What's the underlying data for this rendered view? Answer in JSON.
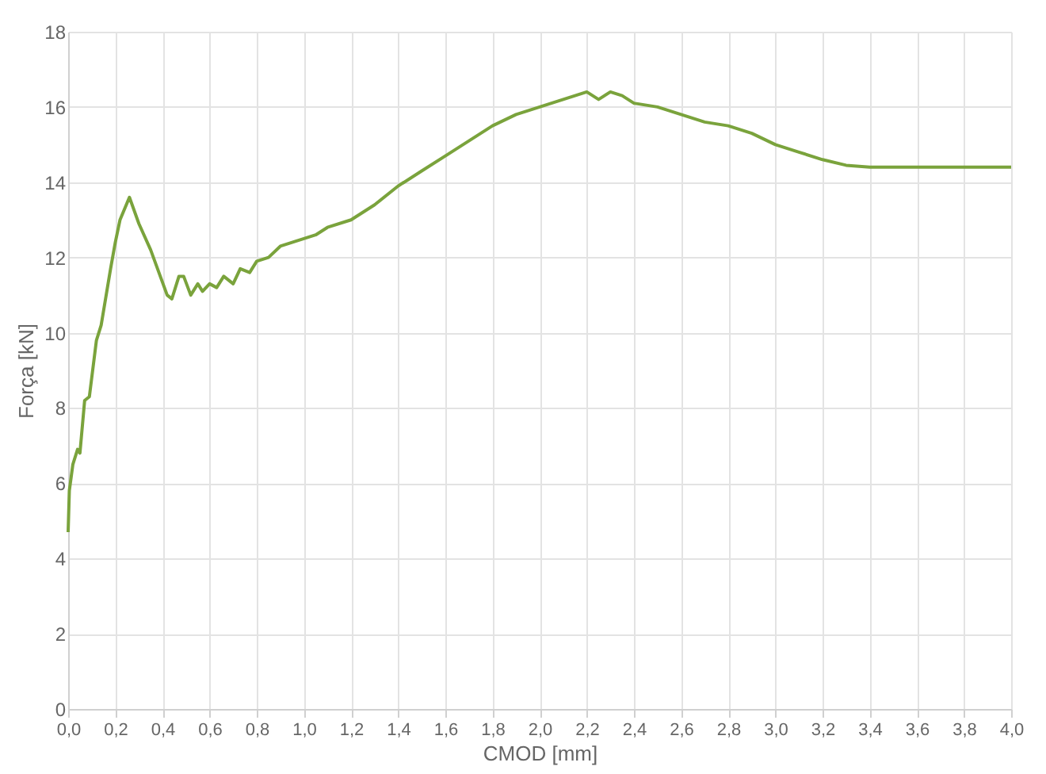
{
  "chart_data": {
    "type": "line",
    "xlabel": "CMOD [mm]",
    "ylabel": "Força [kN]",
    "x": [
      0,
      0.005,
      0.02,
      0.04,
      0.05,
      0.07,
      0.09,
      0.12,
      0.14,
      0.18,
      0.2,
      0.22,
      0.26,
      0.3,
      0.35,
      0.42,
      0.44,
      0.47,
      0.49,
      0.52,
      0.55,
      0.57,
      0.6,
      0.63,
      0.66,
      0.7,
      0.73,
      0.77,
      0.8,
      0.85,
      0.9,
      0.95,
      1.0,
      1.05,
      1.1,
      1.2,
      1.3,
      1.4,
      1.5,
      1.6,
      1.7,
      1.8,
      1.9,
      2.0,
      2.1,
      2.15,
      2.2,
      2.25,
      2.3,
      2.35,
      2.4,
      2.5,
      2.6,
      2.7,
      2.8,
      2.9,
      3.0,
      3.1,
      3.2,
      3.3,
      3.4,
      3.6,
      3.8,
      4.0
    ],
    "series": [
      {
        "color": "#7aa33c",
        "values": [
          4.7,
          5.8,
          6.5,
          6.9,
          6.8,
          8.2,
          8.3,
          9.8,
          10.2,
          11.7,
          12.4,
          13.0,
          13.6,
          12.9,
          12.2,
          11.0,
          10.9,
          11.5,
          11.5,
          11.0,
          11.3,
          11.1,
          11.3,
          11.2,
          11.5,
          11.3,
          11.7,
          11.6,
          11.9,
          12.0,
          12.3,
          12.4,
          12.5,
          12.6,
          12.8,
          13.0,
          13.4,
          13.9,
          14.3,
          14.7,
          15.1,
          15.5,
          15.8,
          16.0,
          16.2,
          16.3,
          16.4,
          16.2,
          16.4,
          16.3,
          16.1,
          16.0,
          15.8,
          15.6,
          15.5,
          15.3,
          15.0,
          14.8,
          14.6,
          14.45,
          14.4,
          14.4,
          14.4,
          14.4
        ]
      }
    ],
    "xlim": [
      0,
      4.0
    ],
    "ylim": [
      0,
      18
    ],
    "xticks": [
      {
        "value": 0,
        "label": "0,0"
      },
      {
        "value": 0.2,
        "label": "0,2"
      },
      {
        "value": 0.4,
        "label": "0,4"
      },
      {
        "value": 0.6,
        "label": "0,6"
      },
      {
        "value": 0.8,
        "label": "0,8"
      },
      {
        "value": 1.0,
        "label": "1,0"
      },
      {
        "value": 1.2,
        "label": "1,2"
      },
      {
        "value": 1.4,
        "label": "1,4"
      },
      {
        "value": 1.6,
        "label": "1,6"
      },
      {
        "value": 1.8,
        "label": "1,8"
      },
      {
        "value": 2.0,
        "label": "2,0"
      },
      {
        "value": 2.2,
        "label": "2,2"
      },
      {
        "value": 2.4,
        "label": "2,4"
      },
      {
        "value": 2.6,
        "label": "2,6"
      },
      {
        "value": 2.8,
        "label": "2,8"
      },
      {
        "value": 3.0,
        "label": "3,0"
      },
      {
        "value": 3.2,
        "label": "3,2"
      },
      {
        "value": 3.4,
        "label": "3,4"
      },
      {
        "value": 3.6,
        "label": "3,6"
      },
      {
        "value": 3.8,
        "label": "3,8"
      },
      {
        "value": 4.0,
        "label": "4,0"
      }
    ],
    "yticks": [
      0,
      2,
      4,
      6,
      8,
      10,
      12,
      14,
      16,
      18
    ],
    "grid": true,
    "marker": "none",
    "line_style": "solid"
  }
}
